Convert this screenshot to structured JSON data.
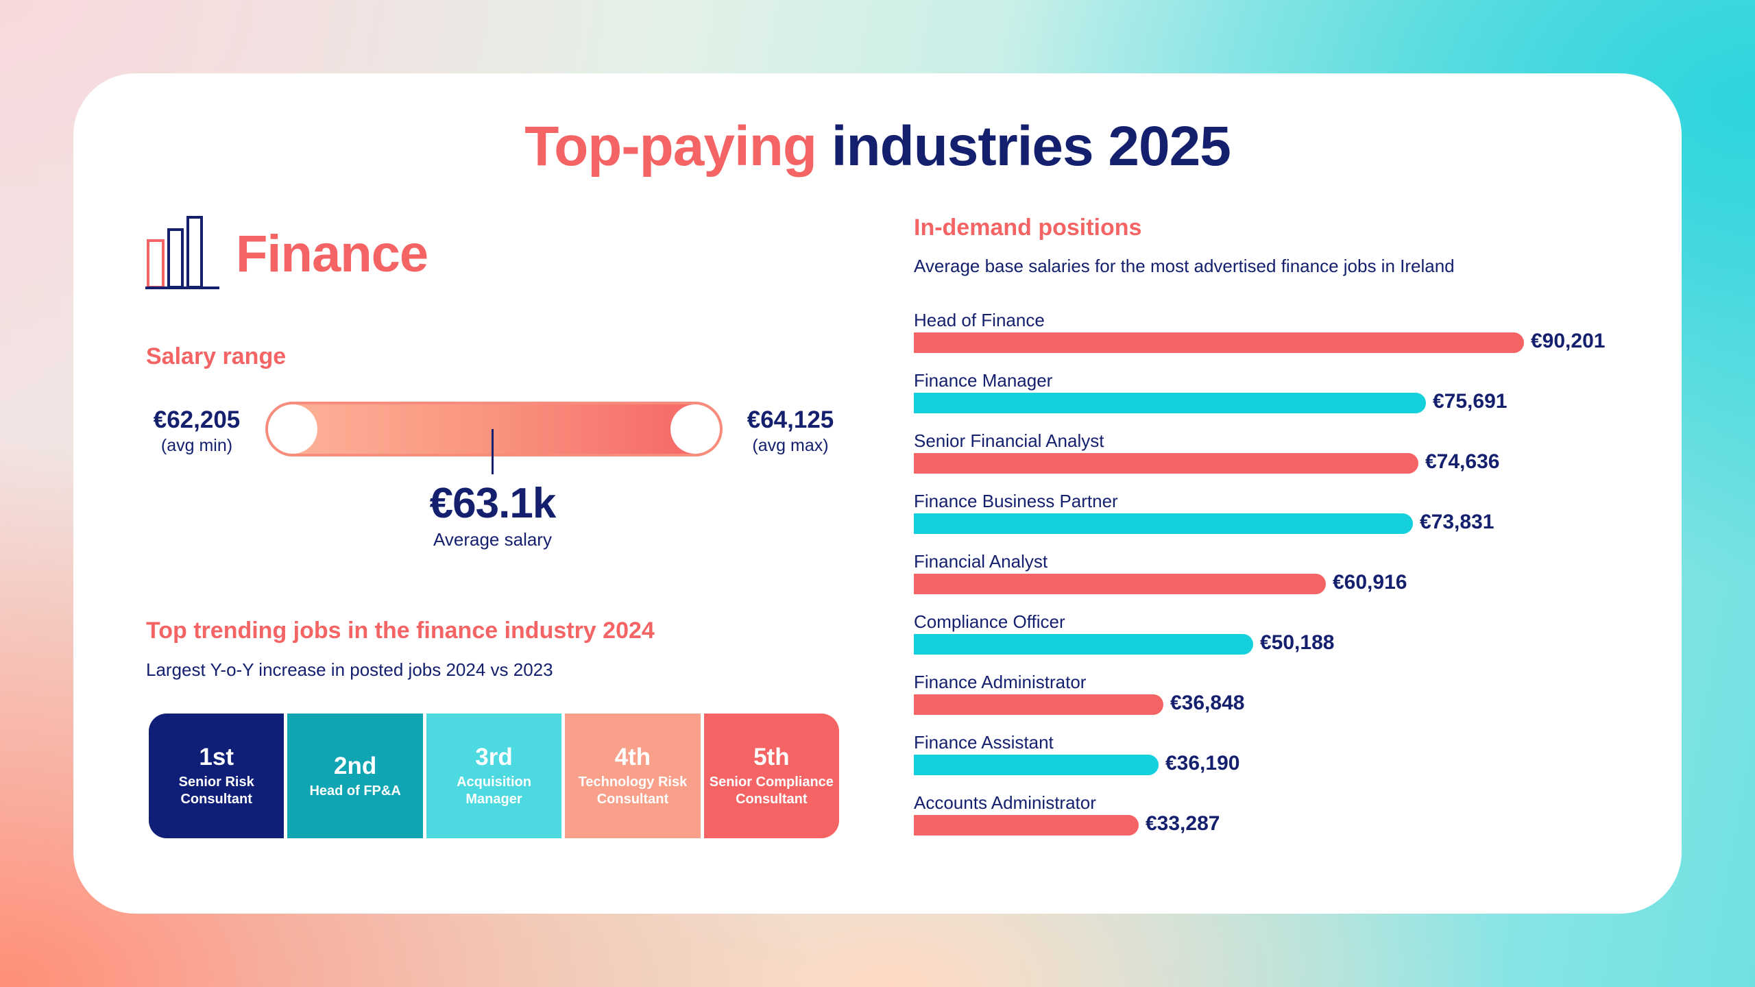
{
  "title": {
    "part1": "Top-paying",
    "part2": "industries 2025"
  },
  "industry": {
    "name": "Finance",
    "icon": "bar-chart-icon"
  },
  "salary_range": {
    "heading": "Salary range",
    "min_value": "€62,205",
    "min_label": "(avg min)",
    "max_value": "€64,125",
    "max_label": "(avg max)",
    "avg_value": "€63.1k",
    "avg_label": "Average salary"
  },
  "trending": {
    "heading": "Top trending jobs in the finance industry 2024",
    "subheading": "Largest Y-o-Y increase in posted jobs 2024 vs 2023",
    "items": [
      {
        "rank": "1st",
        "job": "Senior Risk Consultant",
        "color": "#0f1f78"
      },
      {
        "rank": "2nd",
        "job": "Head of FP&A",
        "color": "#10a5b3"
      },
      {
        "rank": "3rd",
        "job": "Acquisition Manager",
        "color": "#4dd9e0"
      },
      {
        "rank": "4th",
        "job": "Technology Risk Consultant",
        "color": "#f9a08a"
      },
      {
        "rank": "5th",
        "job": "Senior Compliance Consultant",
        "color": "#f56464"
      }
    ]
  },
  "positions": {
    "heading": "In-demand positions",
    "subheading": "Average base salaries for the most advertised finance jobs in Ireland"
  },
  "colors": {
    "coral": "#f56464",
    "teal": "#14d0dc",
    "navy": "#14206e"
  },
  "chart_data": {
    "type": "bar",
    "orientation": "horizontal",
    "categories": [
      "Head of Finance",
      "Finance Manager",
      "Senior Financial Analyst",
      "Finance Business Partner",
      "Financial Analyst",
      "Compliance Officer",
      "Finance Administrator",
      "Finance Assistant",
      "Accounts Administrator"
    ],
    "values": [
      90201,
      75691,
      74636,
      73831,
      60916,
      50188,
      36848,
      36190,
      33287
    ],
    "value_labels": [
      "€90,201",
      "€75,691",
      "€74,636",
      "€73,831",
      "€60,916",
      "€50,188",
      "€36,848",
      "€36,190",
      "€33,287"
    ],
    "bar_colors": [
      "#f56464",
      "#14d0dc",
      "#f56464",
      "#14d0dc",
      "#f56464",
      "#14d0dc",
      "#f56464",
      "#14d0dc",
      "#f56464"
    ],
    "title": "In-demand positions",
    "xlim": [
      0,
      90201
    ]
  }
}
